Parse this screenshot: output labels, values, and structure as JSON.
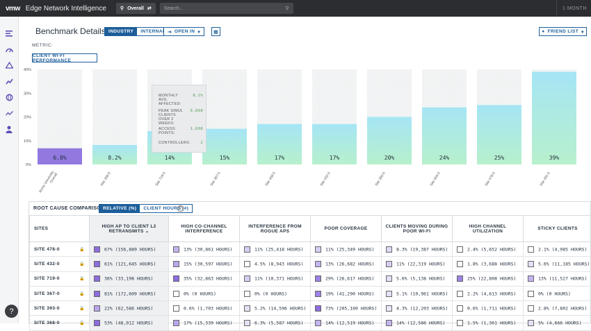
{
  "topbar": {
    "logo": "vmw",
    "title": "Edge Network Intelligence",
    "scope_label": "Overall",
    "search_placeholder": "Search...",
    "time_range": "1 MONTH"
  },
  "page": {
    "title": "Benchmark Details",
    "toggle": [
      "INDUSTRY",
      "INTERNAL"
    ],
    "open_in": "OPEN IN",
    "friend_list": "FRIEND LIST",
    "metric_label": "METRIC:",
    "metric_value": "CLIENT WI-FI PERFORMANCE"
  },
  "colors": {
    "accent": "#1d5e9a",
    "highlight_bar": "#9179e0",
    "bar_gradient_top": "#a5e5f5",
    "bar_gradient_bottom": "#b7f0cc"
  },
  "chart_data": {
    "type": "bar",
    "categories": [
      "Acme University Overall",
      "Site 368-0",
      "Site 719-0",
      "Site 367-0",
      "Site 468-0",
      "Site 432-0",
      "Site 393-0",
      "Site 504-0",
      "Site 478-0",
      "Site 491-0"
    ],
    "values": [
      6.8,
      8.2,
      14,
      15,
      17,
      17,
      20,
      24,
      25,
      39
    ],
    "labels": [
      "6.8%",
      "8.2%",
      "14%",
      "15%",
      "17%",
      "17%",
      "20%",
      "24%",
      "25%",
      "39%"
    ],
    "y_ticks": [
      "40%",
      "30%",
      "20%",
      "10%",
      "0%"
    ],
    "ylim": [
      0,
      40
    ],
    "highlight_index": 0,
    "grid": true
  },
  "tooltip": {
    "rows": [
      {
        "label": "MONTHLY AVG. AFFECTED:",
        "value": "8.2%"
      },
      {
        "label": "PEAK SIMUL CLIENTS OVER 2 WEEKS:",
        "value": "6,898"
      },
      {
        "label": "ACCESS POINTS:",
        "value": "1,608"
      },
      {
        "label": "CONTROLLERS:",
        "value": "2"
      }
    ]
  },
  "root_cause": {
    "title": "ROOT CAUSE COMPARISON",
    "tabs": [
      "RELATIVE (%)",
      "CLIENT HOURS (#)"
    ],
    "help": "?",
    "headers": [
      "SITES",
      "HIGH AP TO CLIENT L2 RETRANSMITS",
      "HIGH CO-CHANNEL INTERFERENCE",
      "INTERFERENCE FROM ROGUE APS",
      "POOR COVERAGE",
      "CLIENTS MOVING DURING POOR WI-FI",
      "HIGH CHANNEL UTILIZATION",
      "STICKY CLIENTS"
    ],
    "rows": [
      {
        "site": "SITE 478-0",
        "cells": [
          "67% (156,889 HOURS)",
          "13% (30,861 HOURS)",
          "11% (25,418 HOURS)",
          "11% (25,349 HOURS)",
          "8.3% (19,387 HOURS)",
          "2.4% (5,652 HOURS)",
          "2.1% (4,985 HOURS)"
        ],
        "swatch": [
          "#8d6de0",
          "#c4b4ef",
          "#d7cdf5",
          "#d7cdf5",
          "#e0d8f7",
          "#ffffff",
          "#ffffff"
        ]
      },
      {
        "site": "SITE 432-0",
        "cells": [
          "61% (121,645 HOURS)",
          "15% (30,597 HOURS)",
          "4.5% (8,943 HOURS)",
          "13% (26,682 HOURS)",
          "11% (22,319 HOURS)",
          "1.8% (3,688 HOURS)",
          "5.6% (11,185 HOURS)"
        ],
        "swatch": [
          "#8d6de0",
          "#b9a6ec",
          "#ffffff",
          "#c4b4ef",
          "#d7cdf5",
          "#ffffff",
          "#e6e0f8"
        ]
      },
      {
        "site": "SITE 719-0",
        "cells": [
          "36% (33,198 HOURS)",
          "35% (32,863 HOURS)",
          "11% (10,371 HOURS)",
          "29% (26,617 HOURS)",
          "5.6% (5,138 HOURS)",
          "25% (22,808 HOURS)",
          "13% (11,527 HOURS)"
        ],
        "swatch": [
          "#8d6de0",
          "#8d6de0",
          "#d7cdf5",
          "#9d82e4",
          "#e6e0f8",
          "#9d82e4",
          "#c4b4ef"
        ]
      },
      {
        "site": "SITE 367-0",
        "cells": [
          "81% (172,609 HOURS)",
          "0% (0 HOURS)",
          "0% (0 HOURS)",
          "19% (41,290 HOURS)",
          "5.1% (10,961 HOURS)",
          "2.2% (4,613 HOURS)",
          "0% (0 HOURS)"
        ],
        "swatch": [
          "#8d6de0",
          "#ffffff",
          "#ffffff",
          "#9d82e4",
          "#e6e0f8",
          "#ffffff",
          "#ffffff"
        ]
      },
      {
        "site": "SITE 393-0",
        "cells": [
          "22% (62,586 HOURS)",
          "0.6% (1,703 HOURS)",
          "5.2% (14,596 HOURS)",
          "73% (205,100 HOURS)",
          "4.3% (12,203 HOURS)",
          "0.6% (1,711 HOURS)",
          "2.8% (7,802 HOURS)"
        ],
        "swatch": [
          "#b9a6ec",
          "#ffffff",
          "#e6e0f8",
          "#8d6de0",
          "#ece7fa",
          "#ffffff",
          "#ffffff"
        ]
      },
      {
        "site": "SITE 368-0",
        "cells": [
          "53% (48,012 HOURS)",
          "17% (15,339 HOURS)",
          "6.3% (5,587 HOURS)",
          "14% (12,519 HOURS)",
          "14% (12,586 HOURS)",
          "1.5% (1,361 HOURS)",
          "5% (4,666 HOURS)"
        ],
        "swatch": [
          "#8d6de0",
          "#b9a6ec",
          "#e6e0f8",
          "#c4b4ef",
          "#c4b4ef",
          "#ffffff",
          "#e6e0f8"
        ]
      }
    ]
  }
}
